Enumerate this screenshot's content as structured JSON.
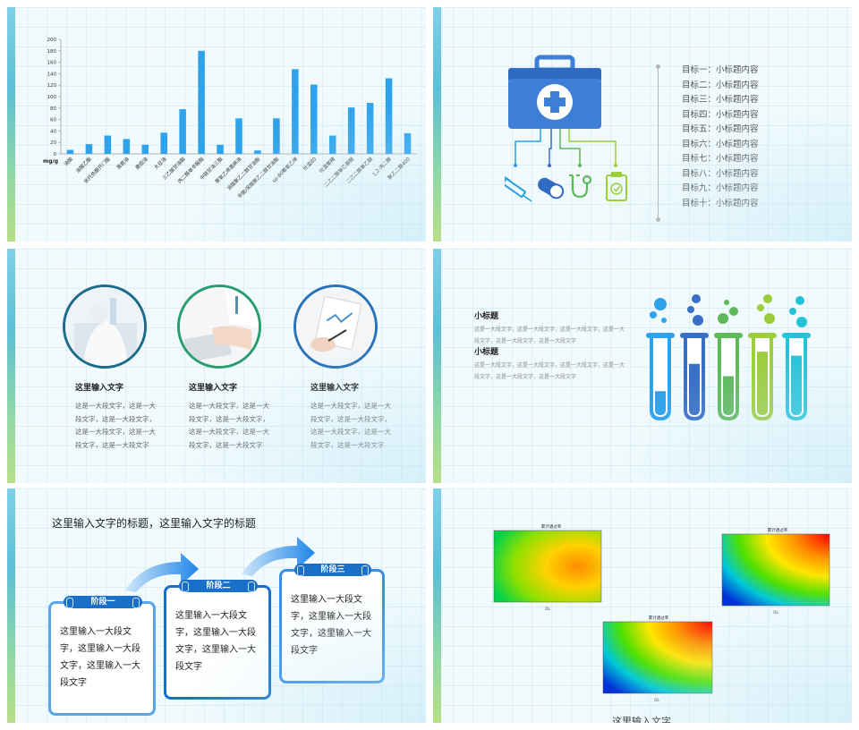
{
  "slide1": {
    "chart_data": {
      "type": "bar",
      "ylabel": "mg/g",
      "ylim": [
        0,
        200
      ],
      "yticks": [
        0,
        20,
        40,
        60,
        80,
        100,
        120,
        140,
        160,
        180,
        200
      ],
      "color": "#2ea3ec",
      "categories": [
        "油酸",
        "油酸乙酯",
        "依托色酮开门酯",
        "莨菪油",
        "鹿菇油",
        "大豆油",
        "三乙酸甘油酯",
        "丙二醇单辛酸酯",
        "中链甘油三酯",
        "聚氧乙烯蓖麻油",
        "油酸聚乙二醇甘油酯",
        "辛酸/癸酸聚乙二醇甘油酯",
        "sp-80聚氧乙烯",
        "吐温80",
        "吐温聚精",
        "二乙二醇单乙基醚",
        "二乙二醇单乙醚",
        "1,2-丙二醇",
        "聚乙二醇400"
      ],
      "values": [
        7,
        17,
        32,
        26,
        16,
        37,
        78,
        180,
        16,
        62,
        6,
        62,
        148,
        121,
        32,
        81,
        89,
        132,
        36
      ]
    }
  },
  "slide2": {
    "goals": [
      "目标一：小标题内容",
      "目标二：小标题内容",
      "目标三：小标题内容",
      "目标四：小标题内容",
      "目标五：小标题内容",
      "目标六：小标题内容",
      "目标七：小标题内容",
      "目标八：小标题内容",
      "目标九：小标题内容",
      "目标十：小标题内容"
    ],
    "colors": {
      "kit": "#3d7fd6",
      "line1": "#2c9fe0",
      "line2": "#3a6fc6",
      "line3": "#5fb85a",
      "line4": "#9ccd3b"
    },
    "icons": [
      "medical-kit-icon",
      "syringe-icon",
      "pill-icon",
      "stethoscope-icon",
      "clipboard-check-icon"
    ]
  },
  "slide3": {
    "columns": [
      {
        "title": "这里输入文字",
        "body": "这是一大段文字，这是一大段文字，这是一大段文字，这是一大段文字，这是一大段文字，这是一大段文字",
        "ring": "#1d6b8a"
      },
      {
        "title": "这里输入文字",
        "body": "这是一大段文字，这是一大段文字，这是一大段文字，这是一大段文字，这是一大段文字，这是一大段文字",
        "ring": "#2a9d6f"
      },
      {
        "title": "这里输入文字",
        "body": "这是一大段文字，这是一大段文字，这是一大段文字，这是一大段文字，这是一大段文字，这是一大段文字",
        "ring": "#2a72b8"
      }
    ]
  },
  "slide4": {
    "subtitles": [
      {
        "title": "小标题",
        "body": "这是一大段文字，这是一大段文字，这是一大段文字，这是一大段文字，这是一大段文字，这是一大段文字"
      },
      {
        "title": "小标题",
        "body": "这是一大段文字，这是一大段文字，这是一大段文字，这是一大段文字，这是一大段文字，这是一大段文字"
      }
    ],
    "tube_colors": [
      "#2ea3ec",
      "#3a6fc6",
      "#5fb85a",
      "#9ccd3b",
      "#25c3d8"
    ],
    "tube_levels": [
      0.3,
      0.7,
      0.52,
      0.88,
      0.82
    ]
  },
  "slide5": {
    "title": "这里输入文字的标题，这里输入文字的标题",
    "stages": [
      {
        "label": "阶段一",
        "text": "这里输入一大段文字，这里输入一大段文字，这里输入一大段文字"
      },
      {
        "label": "阶段二",
        "text": "这里输入一大段文字，这里输入一大段文字，这里输入一大段文字"
      },
      {
        "label": "阶段三",
        "text": "这里输入一大段文字，这里输入一大段文字，这里输入一大段文字"
      }
    ]
  },
  "slide6": {
    "caption": "这里输入文字",
    "plot_title": "累计透过率",
    "xlabel": "OL"
  }
}
